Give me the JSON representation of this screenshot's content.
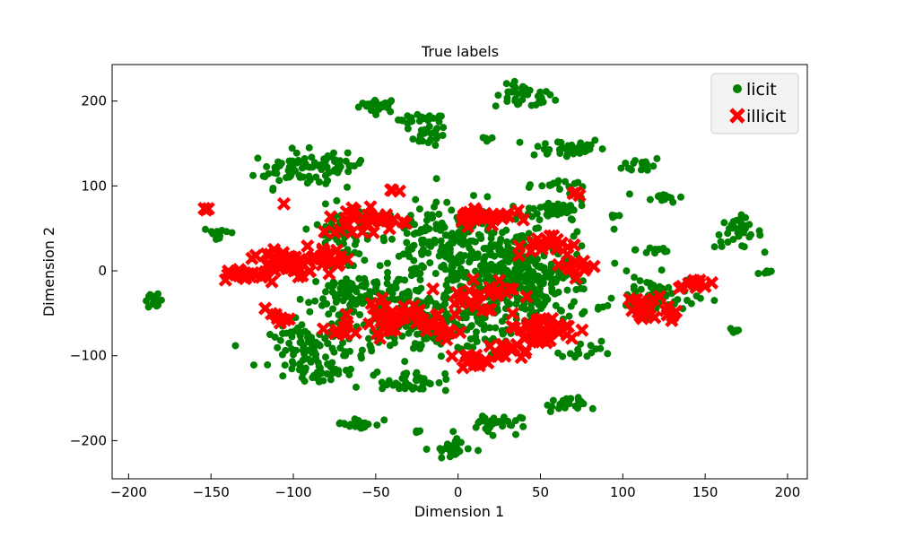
{
  "chart_data": {
    "type": "scatter",
    "title": "True labels",
    "xlabel": "Dimension 1",
    "ylabel": "Dimension 2",
    "xlim": [
      -210,
      212
    ],
    "ylim": [
      -245,
      243
    ],
    "xticks": [
      -200,
      -150,
      -100,
      -50,
      0,
      50,
      100,
      150,
      200
    ],
    "yticks": [
      -200,
      -100,
      0,
      100,
      200
    ],
    "grid": false,
    "legend_position": "top-right",
    "colors": {
      "licit": "#008000",
      "illicit": "#ff0000"
    },
    "series": [
      {
        "name": "licit",
        "marker": "circle",
        "clusters": [
          {
            "x": -48,
            "y": 195,
            "rx": 10,
            "ry": 7,
            "n": 25
          },
          {
            "x": -22,
            "y": 178,
            "rx": 12,
            "ry": 5,
            "n": 20
          },
          {
            "x": -18,
            "y": 160,
            "rx": 10,
            "ry": 10,
            "n": 22
          },
          {
            "x": 40,
            "y": 205,
            "rx": 15,
            "ry": 12,
            "n": 40
          },
          {
            "x": 18,
            "y": 155,
            "rx": 3,
            "ry": 3,
            "n": 6
          },
          {
            "x": 65,
            "y": 145,
            "rx": 20,
            "ry": 10,
            "n": 40
          },
          {
            "x": 112,
            "y": 125,
            "rx": 10,
            "ry": 8,
            "n": 15
          },
          {
            "x": 125,
            "y": 87,
            "rx": 10,
            "ry": 5,
            "n": 15
          },
          {
            "x": -100,
            "y": 120,
            "rx": 20,
            "ry": 18,
            "n": 60
          },
          {
            "x": -75,
            "y": 125,
            "rx": 15,
            "ry": 10,
            "n": 30
          },
          {
            "x": -145,
            "y": 45,
            "rx": 8,
            "ry": 5,
            "n": 14
          },
          {
            "x": -185,
            "y": -35,
            "rx": 5,
            "ry": 6,
            "n": 14
          },
          {
            "x": 170,
            "y": 45,
            "rx": 12,
            "ry": 15,
            "n": 35
          },
          {
            "x": 187,
            "y": -2,
            "rx": 5,
            "ry": 3,
            "n": 6
          },
          {
            "x": 168,
            "y": -70,
            "rx": 3,
            "ry": 4,
            "n": 6
          },
          {
            "x": 95,
            "y": 65,
            "rx": 4,
            "ry": 3,
            "n": 5
          },
          {
            "x": 120,
            "y": 25,
            "rx": 10,
            "ry": 6,
            "n": 12
          },
          {
            "x": 0,
            "y": 30,
            "rx": 50,
            "ry": 40,
            "n": 260
          },
          {
            "x": -20,
            "y": -60,
            "rx": 45,
            "ry": 35,
            "n": 220
          },
          {
            "x": 40,
            "y": -20,
            "rx": 35,
            "ry": 40,
            "n": 200
          },
          {
            "x": -90,
            "y": -90,
            "rx": 20,
            "ry": 20,
            "n": 80
          },
          {
            "x": -60,
            "y": -30,
            "rx": 25,
            "ry": 25,
            "n": 100
          },
          {
            "x": -70,
            "y": 50,
            "rx": 15,
            "ry": 20,
            "n": 50
          },
          {
            "x": 60,
            "y": 70,
            "rx": 15,
            "ry": 12,
            "n": 40
          },
          {
            "x": 120,
            "y": -30,
            "rx": 20,
            "ry": 20,
            "n": 60
          },
          {
            "x": -85,
            "y": -120,
            "rx": 15,
            "ry": 8,
            "n": 30
          },
          {
            "x": -30,
            "y": -130,
            "rx": 20,
            "ry": 10,
            "n": 40
          },
          {
            "x": -60,
            "y": -180,
            "rx": 12,
            "ry": 6,
            "n": 20
          },
          {
            "x": 20,
            "y": -180,
            "rx": 15,
            "ry": 10,
            "n": 30
          },
          {
            "x": -5,
            "y": -210,
            "rx": 10,
            "ry": 10,
            "n": 25
          },
          {
            "x": 65,
            "y": -158,
            "rx": 10,
            "ry": 7,
            "n": 20
          },
          {
            "x": -25,
            "y": -190,
            "rx": 3,
            "ry": 3,
            "n": 4
          },
          {
            "x": 75,
            "y": -95,
            "rx": 10,
            "ry": 10,
            "n": 15
          },
          {
            "x": 60,
            "y": 100,
            "rx": 15,
            "ry": 5,
            "n": 15
          },
          {
            "x": 30,
            "y": 0,
            "rx": 30,
            "ry": 30,
            "n": 120
          }
        ]
      },
      {
        "name": "illicit",
        "marker": "x",
        "clusters": [
          {
            "x": -152,
            "y": 73,
            "rx": 3,
            "ry": 2,
            "n": 3
          },
          {
            "x": -107,
            "y": 10,
            "rx": 15,
            "ry": 15,
            "n": 55
          },
          {
            "x": -80,
            "y": 15,
            "rx": 10,
            "ry": 12,
            "n": 30
          },
          {
            "x": -130,
            "y": -5,
            "rx": 10,
            "ry": 6,
            "n": 20
          },
          {
            "x": -55,
            "y": 60,
            "rx": 25,
            "ry": 15,
            "n": 35
          },
          {
            "x": 15,
            "y": 65,
            "rx": 15,
            "ry": 10,
            "n": 30
          },
          {
            "x": -40,
            "y": -55,
            "rx": 20,
            "ry": 15,
            "n": 40
          },
          {
            "x": 50,
            "y": -70,
            "rx": 20,
            "ry": 15,
            "n": 40
          },
          {
            "x": 10,
            "y": -30,
            "rx": 20,
            "ry": 20,
            "n": 30
          },
          {
            "x": 8,
            "y": -105,
            "rx": 8,
            "ry": 5,
            "n": 15
          },
          {
            "x": 120,
            "y": -45,
            "rx": 15,
            "ry": 15,
            "n": 25
          },
          {
            "x": 145,
            "y": -15,
            "rx": 8,
            "ry": 5,
            "n": 12
          },
          {
            "x": 55,
            "y": 30,
            "rx": 15,
            "ry": 12,
            "n": 20
          },
          {
            "x": -70,
            "y": -70,
            "rx": 8,
            "ry": 8,
            "n": 10
          },
          {
            "x": -10,
            "y": -70,
            "rx": 10,
            "ry": 10,
            "n": 12
          },
          {
            "x": 70,
            "y": 90,
            "rx": 3,
            "ry": 3,
            "n": 3
          },
          {
            "x": -40,
            "y": 95,
            "rx": 3,
            "ry": 3,
            "n": 3
          },
          {
            "x": 30,
            "y": -95,
            "rx": 10,
            "ry": 8,
            "n": 15
          },
          {
            "x": 70,
            "y": 5,
            "rx": 10,
            "ry": 10,
            "n": 12
          },
          {
            "x": -110,
            "y": -55,
            "rx": 6,
            "ry": 5,
            "n": 8
          }
        ]
      }
    ]
  }
}
